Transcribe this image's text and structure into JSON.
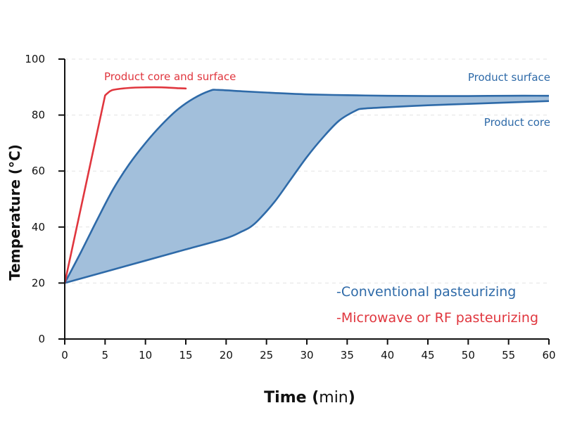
{
  "chart_data": {
    "type": "line",
    "xlabel": {
      "bold_part": "Time (",
      "unit": "min",
      "close": ")"
    },
    "ylabel": "Temperature (°C)",
    "xlim": [
      0,
      60
    ],
    "ylim": [
      0,
      100
    ],
    "xticks": [
      0,
      5,
      10,
      15,
      20,
      25,
      30,
      35,
      40,
      45,
      50,
      55,
      60
    ],
    "yticks": [
      0,
      20,
      40,
      60,
      80,
      100
    ],
    "grid": "horizontal dashed",
    "colors": {
      "conventional": "#2e6aa8",
      "fill": "#a2bfdb",
      "microwave": "#e0363e",
      "axis": "#111111",
      "grid": "#e3e3e3"
    },
    "series": [
      {
        "name": "Product surface",
        "group": "conventional",
        "x": [
          0,
          2,
          4,
          6,
          8,
          10,
          12,
          14,
          16,
          18,
          19,
          22,
          26,
          30,
          35,
          40,
          45,
          50,
          55,
          60
        ],
        "y": [
          20,
          31,
          42.5,
          53.5,
          62.5,
          70,
          76.5,
          82,
          86,
          88.7,
          89,
          88.5,
          87.9,
          87.4,
          87.1,
          86.9,
          86.8,
          86.8,
          86.9,
          86.9
        ]
      },
      {
        "name": "Product core",
        "group": "conventional",
        "x": [
          0,
          5,
          10,
          15,
          20,
          22,
          23,
          24,
          26,
          28,
          30,
          32,
          34,
          36,
          37,
          40,
          45,
          50,
          55,
          60
        ],
        "y": [
          20,
          24,
          28,
          32,
          36,
          38.5,
          40,
          42.5,
          49,
          57,
          65,
          72,
          78,
          81.5,
          82.3,
          82.8,
          83.5,
          84,
          84.5,
          85
        ]
      },
      {
        "name": "Product core and surface",
        "group": "microwave",
        "x": [
          0,
          5,
          5.3,
          6,
          8,
          10,
          12,
          14,
          15
        ],
        "y": [
          20,
          87,
          87.8,
          89,
          89.7,
          89.9,
          89.9,
          89.6,
          89.5
        ]
      }
    ],
    "annotations": [
      {
        "text": "Product core and surface",
        "group": "microwave"
      },
      {
        "text": "Product surface",
        "group": "conventional"
      },
      {
        "text": "Product core",
        "group": "conventional"
      }
    ],
    "legend": {
      "placement": "bottom-right",
      "entries": [
        {
          "text": "-Conventional pasteurizing",
          "group": "conventional"
        },
        {
          "text": "-Microwave or RF pasteurizing",
          "group": "microwave"
        }
      ]
    }
  }
}
